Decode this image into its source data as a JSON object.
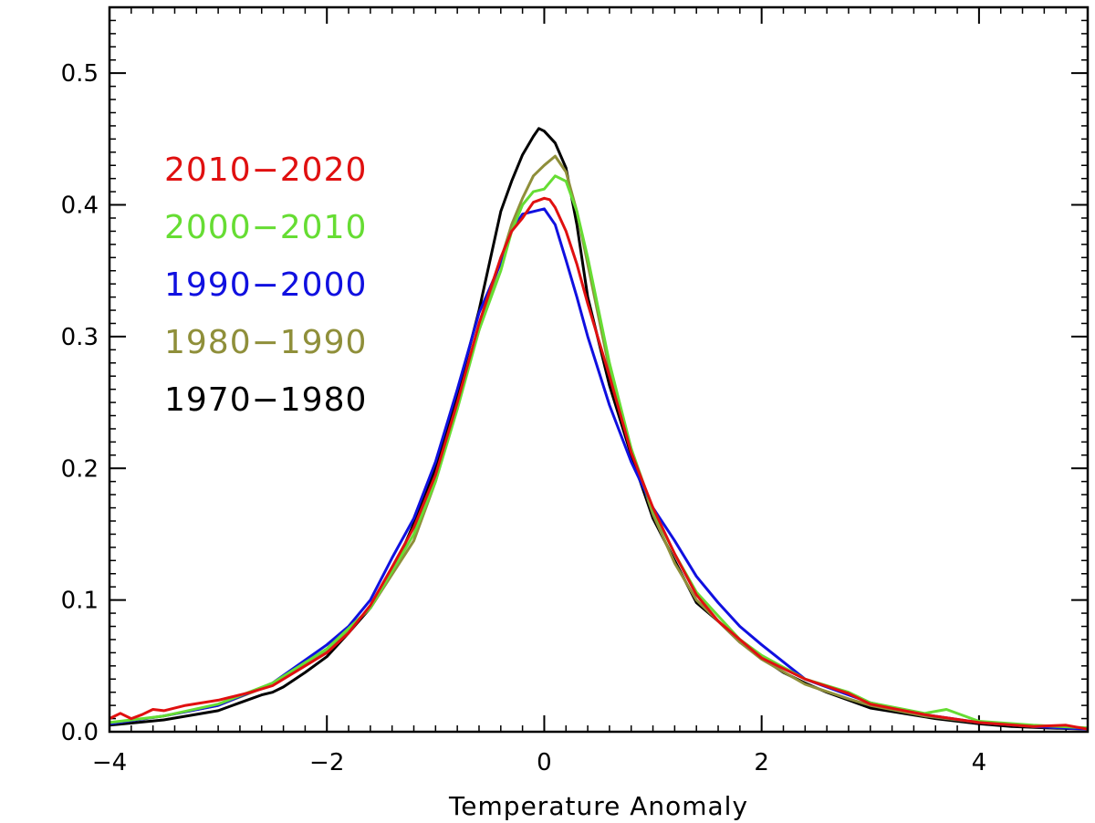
{
  "chart_data": {
    "type": "line",
    "title": "",
    "xlabel": "Temperature Anomaly",
    "ylabel": "",
    "xlim": [
      -4,
      5
    ],
    "ylim": [
      0,
      0.55
    ],
    "grid": false,
    "legend_position": "upper-left",
    "x_ticks": [
      {
        "value": -4,
        "label": "−4"
      },
      {
        "value": -2,
        "label": "−2"
      },
      {
        "value": 0,
        "label": "0"
      },
      {
        "value": 2,
        "label": "2"
      },
      {
        "value": 4,
        "label": "4"
      }
    ],
    "y_ticks": [
      {
        "value": 0.0,
        "label": "0.0"
      },
      {
        "value": 0.1,
        "label": "0.1"
      },
      {
        "value": 0.2,
        "label": "0.2"
      },
      {
        "value": 0.3,
        "label": "0.3"
      },
      {
        "value": 0.4,
        "label": "0.4"
      },
      {
        "value": 0.5,
        "label": "0.5"
      }
    ],
    "x_minor_step": 0.2,
    "y_minor_step": 0.01,
    "series": [
      {
        "name": "1970−1980",
        "color": "#000000",
        "x": [
          -4.0,
          -3.5,
          -3.0,
          -2.8,
          -2.6,
          -2.5,
          -2.4,
          -2.2,
          -2.0,
          -1.8,
          -1.6,
          -1.4,
          -1.2,
          -1.0,
          -0.8,
          -0.6,
          -0.4,
          -0.3,
          -0.2,
          -0.1,
          -0.05,
          0.0,
          0.1,
          0.2,
          0.3,
          0.4,
          0.6,
          0.8,
          1.0,
          1.2,
          1.4,
          1.6,
          1.8,
          2.0,
          2.2,
          2.4,
          2.6,
          2.8,
          3.0,
          3.3,
          3.6,
          4.0,
          4.3,
          4.6,
          5.0
        ],
        "values": [
          0.005,
          0.009,
          0.016,
          0.022,
          0.028,
          0.03,
          0.034,
          0.045,
          0.057,
          0.075,
          0.094,
          0.12,
          0.158,
          0.2,
          0.256,
          0.32,
          0.395,
          0.418,
          0.438,
          0.452,
          0.458,
          0.456,
          0.447,
          0.428,
          0.385,
          0.33,
          0.263,
          0.21,
          0.162,
          0.13,
          0.098,
          0.084,
          0.068,
          0.056,
          0.045,
          0.037,
          0.03,
          0.024,
          0.018,
          0.014,
          0.01,
          0.006,
          0.004,
          0.003,
          0.002
        ]
      },
      {
        "name": "1980−1990",
        "color": "#8f8f3a",
        "x": [
          -4.0,
          -3.5,
          -3.0,
          -2.5,
          -2.0,
          -1.6,
          -1.2,
          -1.0,
          -0.8,
          -0.6,
          -0.4,
          -0.3,
          -0.2,
          -0.1,
          0.0,
          0.1,
          0.2,
          0.3,
          0.4,
          0.6,
          0.8,
          1.0,
          1.2,
          1.4,
          1.6,
          1.8,
          2.0,
          2.4,
          2.8,
          3.0,
          3.5,
          4.0,
          4.5,
          5.0
        ],
        "values": [
          0.006,
          0.012,
          0.02,
          0.036,
          0.062,
          0.094,
          0.145,
          0.19,
          0.248,
          0.305,
          0.358,
          0.385,
          0.405,
          0.422,
          0.43,
          0.437,
          0.425,
          0.395,
          0.355,
          0.275,
          0.215,
          0.165,
          0.128,
          0.1,
          0.084,
          0.068,
          0.055,
          0.036,
          0.025,
          0.02,
          0.012,
          0.007,
          0.004,
          0.002
        ]
      },
      {
        "name": "1990−2000",
        "color": "#1010e0",
        "x": [
          -4.0,
          -3.5,
          -3.0,
          -2.5,
          -2.0,
          -1.8,
          -1.6,
          -1.4,
          -1.2,
          -1.0,
          -0.8,
          -0.6,
          -0.4,
          -0.3,
          -0.2,
          -0.1,
          0.0,
          0.1,
          0.2,
          0.3,
          0.4,
          0.6,
          0.8,
          1.0,
          1.2,
          1.4,
          1.6,
          1.8,
          2.0,
          2.4,
          2.8,
          3.0,
          3.5,
          4.0,
          4.5,
          5.0
        ],
        "values": [
          0.006,
          0.012,
          0.02,
          0.037,
          0.066,
          0.08,
          0.1,
          0.132,
          0.162,
          0.205,
          0.26,
          0.318,
          0.356,
          0.38,
          0.393,
          0.395,
          0.397,
          0.385,
          0.358,
          0.33,
          0.3,
          0.248,
          0.205,
          0.17,
          0.145,
          0.118,
          0.098,
          0.08,
          0.066,
          0.04,
          0.028,
          0.022,
          0.013,
          0.007,
          0.004,
          0.002
        ]
      },
      {
        "name": "2000−2010",
        "color": "#66dd33",
        "x": [
          -4.0,
          -3.5,
          -3.0,
          -2.5,
          -2.0,
          -1.6,
          -1.2,
          -1.0,
          -0.8,
          -0.6,
          -0.4,
          -0.3,
          -0.2,
          -0.1,
          0.0,
          0.1,
          0.2,
          0.3,
          0.4,
          0.6,
          0.8,
          1.0,
          1.2,
          1.4,
          1.6,
          1.8,
          2.0,
          2.4,
          2.8,
          3.0,
          3.5,
          3.7,
          4.0,
          4.5,
          5.0
        ],
        "values": [
          0.007,
          0.012,
          0.021,
          0.037,
          0.063,
          0.094,
          0.15,
          0.19,
          0.245,
          0.305,
          0.35,
          0.38,
          0.4,
          0.41,
          0.412,
          0.422,
          0.418,
          0.395,
          0.36,
          0.28,
          0.215,
          0.168,
          0.135,
          0.106,
          0.088,
          0.07,
          0.058,
          0.04,
          0.03,
          0.022,
          0.014,
          0.017,
          0.008,
          0.005,
          0.003
        ]
      },
      {
        "name": "2010−2020",
        "color": "#e01010",
        "x": [
          -4.0,
          -3.9,
          -3.8,
          -3.7,
          -3.6,
          -3.5,
          -3.3,
          -3.0,
          -2.7,
          -2.5,
          -2.2,
          -2.0,
          -1.8,
          -1.6,
          -1.4,
          -1.2,
          -1.0,
          -0.8,
          -0.6,
          -0.4,
          -0.3,
          -0.2,
          -0.1,
          0.0,
          0.05,
          0.1,
          0.2,
          0.3,
          0.4,
          0.6,
          0.8,
          1.0,
          1.2,
          1.4,
          1.6,
          1.8,
          2.0,
          2.4,
          2.8,
          3.0,
          3.5,
          4.0,
          4.5,
          4.8,
          5.0
        ],
        "values": [
          0.01,
          0.014,
          0.01,
          0.013,
          0.017,
          0.016,
          0.02,
          0.024,
          0.03,
          0.035,
          0.05,
          0.06,
          0.075,
          0.096,
          0.125,
          0.155,
          0.195,
          0.25,
          0.31,
          0.36,
          0.38,
          0.39,
          0.402,
          0.405,
          0.404,
          0.398,
          0.38,
          0.355,
          0.325,
          0.27,
          0.212,
          0.17,
          0.135,
          0.104,
          0.084,
          0.07,
          0.056,
          0.04,
          0.029,
          0.021,
          0.013,
          0.007,
          0.004,
          0.005,
          0.002
        ]
      }
    ]
  }
}
